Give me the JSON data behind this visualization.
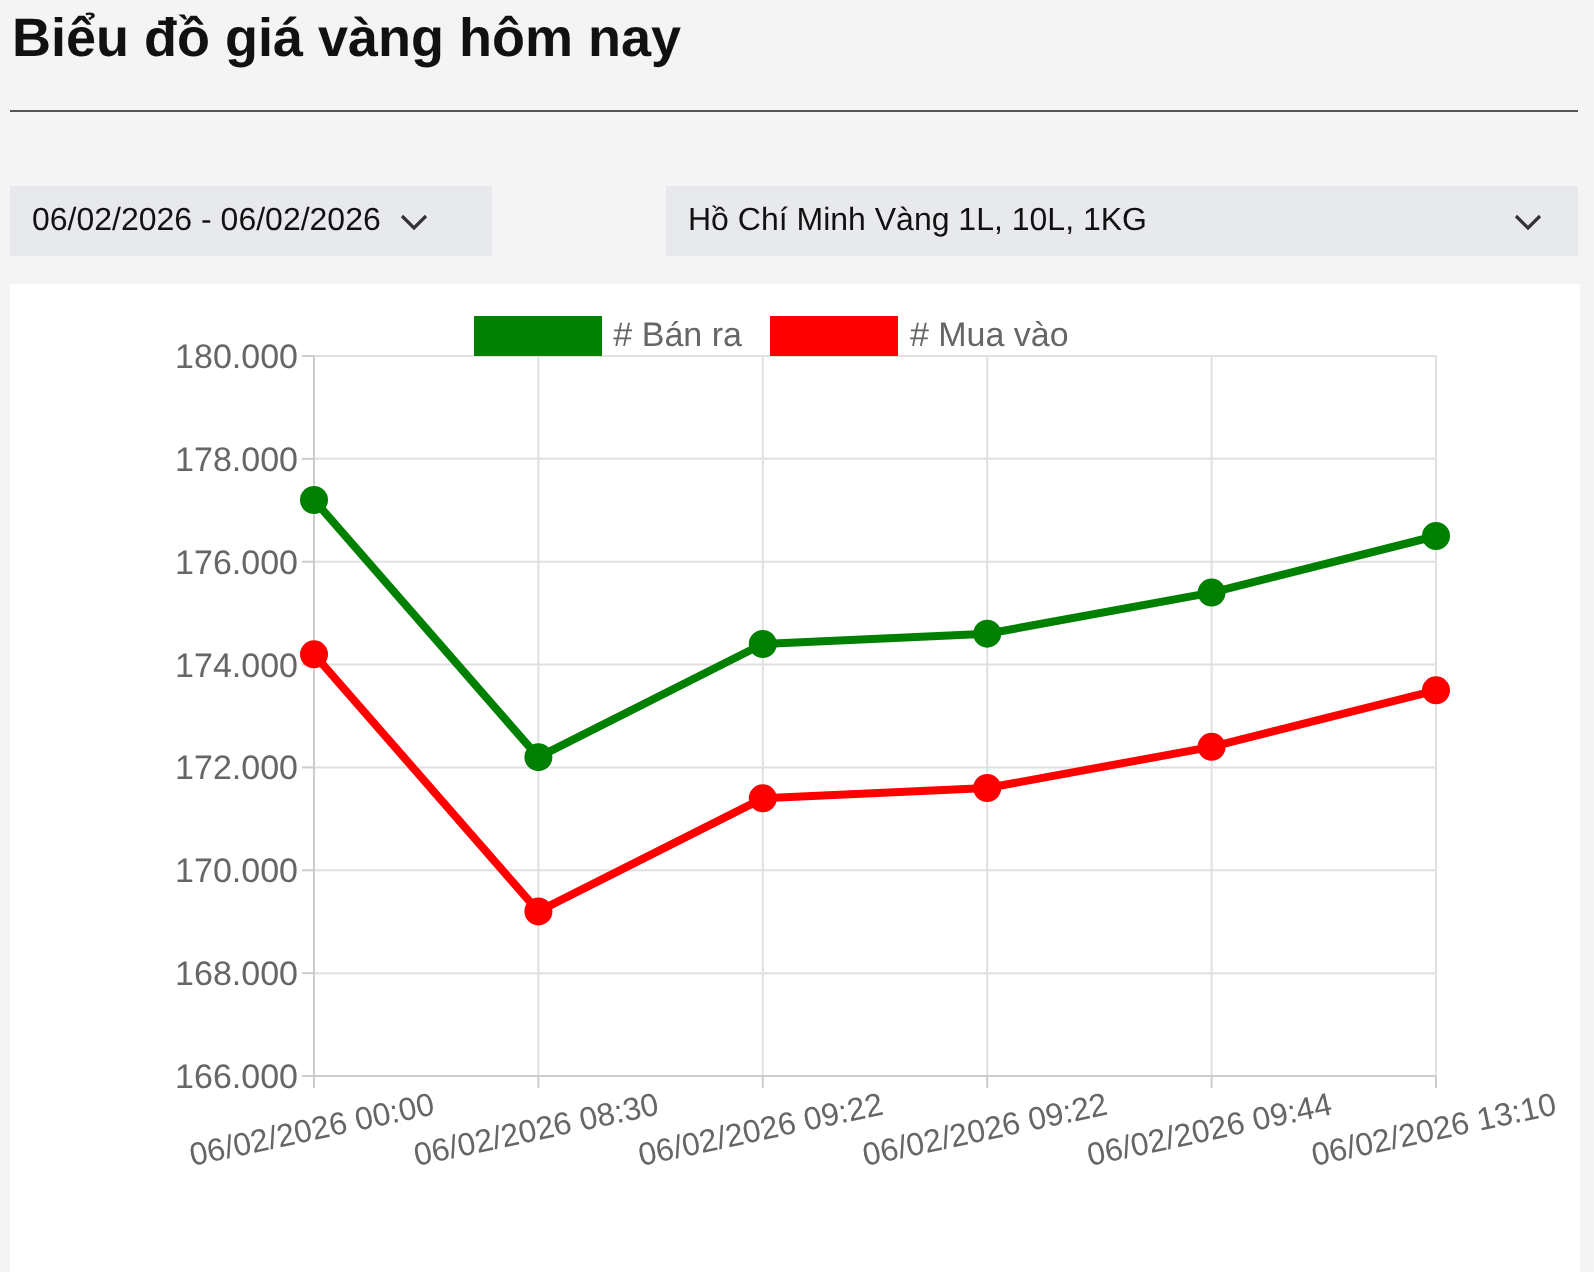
{
  "chart_data": {
    "type": "line",
    "title": "Biểu đồ giá vàng hôm nay",
    "annotations": [
      "06/02/2026 - 06/02/2026",
      "Hồ Chí Minh Vàng 1L, 10L, 1KG"
    ],
    "categories": [
      "06/02/2026 00:00",
      "06/02/2026 08:30",
      "06/02/2026 09:22",
      "06/02/2026 09:22",
      "06/02/2026 09:44",
      "06/02/2026 13:10"
    ],
    "series": [
      {
        "name": "# Bán ra",
        "color": "#008000",
        "values": [
          177200,
          172200,
          174400,
          174600,
          175400,
          176500
        ]
      },
      {
        "name": "# Mua vào",
        "color": "#ff0000",
        "values": [
          174200,
          169200,
          171400,
          171600,
          172400,
          173500
        ]
      }
    ],
    "ylim": [
      166000,
      180000
    ],
    "yticks": [
      {
        "value": 166000,
        "label": "166.000"
      },
      {
        "value": 168000,
        "label": "168.000"
      },
      {
        "value": 170000,
        "label": "170.000"
      },
      {
        "value": 172000,
        "label": "172.000"
      },
      {
        "value": 174000,
        "label": "174.000"
      },
      {
        "value": 176000,
        "label": "176.000"
      },
      {
        "value": 178000,
        "label": "178.000"
      },
      {
        "value": 180000,
        "label": "180.000"
      }
    ],
    "grid": true,
    "legend": "top",
    "marker": "circle",
    "line_style": "solid"
  }
}
